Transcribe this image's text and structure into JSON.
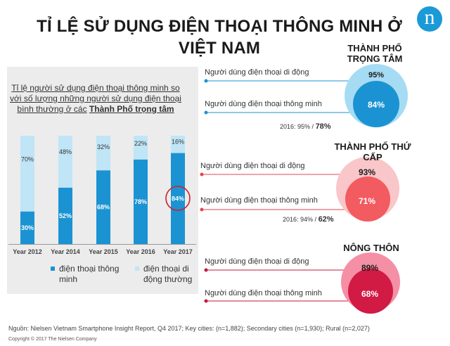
{
  "title": "TỈ LỆ SỬ DỤNG ĐIỆN THOẠI THÔNG MINH Ở VIỆT NAM",
  "logo_letter": "n",
  "panel": {
    "title_plain": "Tỉ lệ người sử dụng điện thoại thông minh so với số lượng những người sử dụng điện thoại bình thường ở các",
    "title_bold": "Thành Phố trọng tâm"
  },
  "chart_data": [
    {
      "type": "bar",
      "stacked": true,
      "categories": [
        "Year 2012",
        "Year 2014",
        "Year 2015",
        "Year 2016",
        "Year 2017"
      ],
      "series": [
        {
          "name": "điện thoại thông minh",
          "values": [
            30,
            52,
            68,
            78,
            84
          ],
          "color": "#1b93d3"
        },
        {
          "name": "điện thoại di động thường",
          "values": [
            70,
            48,
            32,
            22,
            16
          ],
          "color": "#bfe5f7"
        }
      ],
      "value_labels": {
        "smart": [
          "30%",
          "52%",
          "68%",
          "78%",
          "84%"
        ],
        "regular": [
          "70%",
          "48%",
          "32%",
          "22%",
          "16%"
        ]
      },
      "highlight_index": 4,
      "highlight_color": "#d21f26",
      "ylim": [
        0,
        100
      ]
    },
    {
      "type": "bubble",
      "segments": [
        {
          "title": "THÀNH PHỐ TRỌNG TÂM",
          "rows": [
            "Người dùng điện thoại di động",
            "Người dùng điện thoại thông minh"
          ],
          "outer_value": 95,
          "outer_label": "95%",
          "inner_value": 84,
          "inner_label": "84%",
          "note_prefix": "2016: 95% /",
          "note_value": "78%",
          "outer_color": "#a5dcf4",
          "inner_color": "#1b93d3",
          "line_color": "#1b93d3"
        },
        {
          "title": "THÀNH PHỐ THỨ CẤP",
          "rows": [
            "Người dùng điện thoại di động",
            "Người dùng điện thoại thông minh"
          ],
          "outer_value": 93,
          "outer_label": "93%",
          "inner_value": 71,
          "inner_label": "71%",
          "note_prefix": "2016: 94% /",
          "note_value": "62%",
          "outer_color": "#f9c6c9",
          "inner_color": "#f25b5f",
          "line_color": "#e0474c"
        },
        {
          "title": "NÔNG THÔN",
          "rows": [
            "Người dùng điện thoại di động",
            "Người dùng điện thoại thông minh"
          ],
          "outer_value": 89,
          "outer_label": "89%",
          "inner_value": 68,
          "inner_label": "68%",
          "note_prefix": "",
          "note_value": "",
          "outer_color": "#f48fa6",
          "inner_color": "#d11a44",
          "line_color": "#c4173f"
        }
      ]
    }
  ],
  "source": "Nguồn: Nielsen Vietnam Smartphone Insight Report, Q4 2017; Key cities:  (n=1,882); Secondary cities (n=1,930); Rural (n=2,027)",
  "copyright": "Copyright © 2017 The Nielsen Company"
}
